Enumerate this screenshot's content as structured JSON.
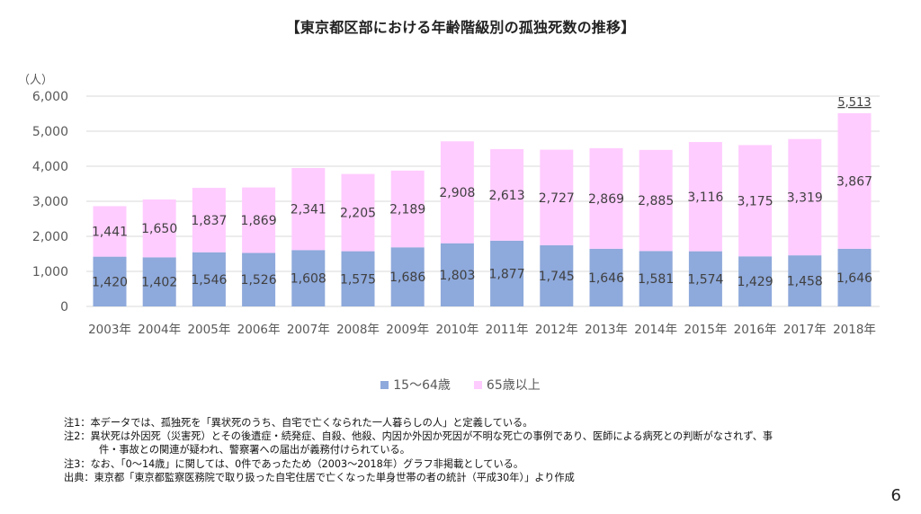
{
  "chart_data": {
    "type": "bar",
    "stacked": true,
    "title": "【東京都区部における年齢階級別の孤独死数の推移】",
    "ylabel": "（人）",
    "xlabel": "",
    "ylim": [
      0,
      6000
    ],
    "yticks": [
      0,
      1000,
      2000,
      3000,
      4000,
      5000,
      6000
    ],
    "ytick_labels": [
      "0",
      "1,000",
      "2,000",
      "3,000",
      "4,000",
      "5,000",
      "6,000"
    ],
    "grid": true,
    "legend_position": "bottom",
    "categories": [
      "2003年",
      "2004年",
      "2005年",
      "2006年",
      "2007年",
      "2008年",
      "2009年",
      "2010年",
      "2011年",
      "2012年",
      "2013年",
      "2014年",
      "2015年",
      "2016年",
      "2017年",
      "2018年"
    ],
    "series": [
      {
        "name": "15～64歳",
        "color": "#8EA9DB",
        "values": [
          1420,
          1402,
          1546,
          1526,
          1608,
          1575,
          1686,
          1803,
          1877,
          1745,
          1646,
          1581,
          1574,
          1429,
          1458,
          1646
        ],
        "labels": [
          "1,420",
          "1,402",
          "1,546",
          "1,526",
          "1,608",
          "1,575",
          "1,686",
          "1,803",
          "1,877",
          "1,745",
          "1,646",
          "1,581",
          "1,574",
          "1,429",
          "1,458",
          "1,646"
        ]
      },
      {
        "name": "65歳以上",
        "color": "#FFCCFF",
        "values": [
          1441,
          1650,
          1837,
          1869,
          2341,
          2205,
          2189,
          2908,
          2613,
          2727,
          2869,
          2885,
          3116,
          3175,
          3319,
          3867
        ],
        "labels": [
          "1,441",
          "1,650",
          "1,837",
          "1,869",
          "2,341",
          "2,205",
          "2,189",
          "2,908",
          "2,613",
          "2,727",
          "2,869",
          "2,885",
          "3,116",
          "3,175",
          "3,319",
          "3,867"
        ]
      }
    ],
    "annotations": [
      {
        "category": "2018年",
        "text": "5,513",
        "value": 5513
      }
    ]
  },
  "legend": {
    "items": [
      {
        "label": "15～64歳",
        "color": "#8EA9DB"
      },
      {
        "label": "65歳以上",
        "color": "#FFCCFF"
      }
    ]
  },
  "notes": {
    "note1": "注1：本データでは、孤独死を「異状死のうち、自宅で亡くなられた一人暮らしの人」と定義している。",
    "note2a": "注2：異状死は外因死（災害死）とその後遺症・続発症、自殺、他殺、内因か外因か死因が不明な死亡の事例であり、医師による病死との判断がなされず、事",
    "note2b": "件・事故との関連が疑われ、警察署への届出が義務付けられている。",
    "note3": "注3：なお、「0～14歳」に関しては、0件であったため（2003～2018年）グラフ非掲載としている。",
    "source": "出典：東京都「東京都監察医務院で取り扱った自宅住居で亡くなった単身世帯の者の統計（平成30年）」より作成"
  },
  "page_number": "6"
}
